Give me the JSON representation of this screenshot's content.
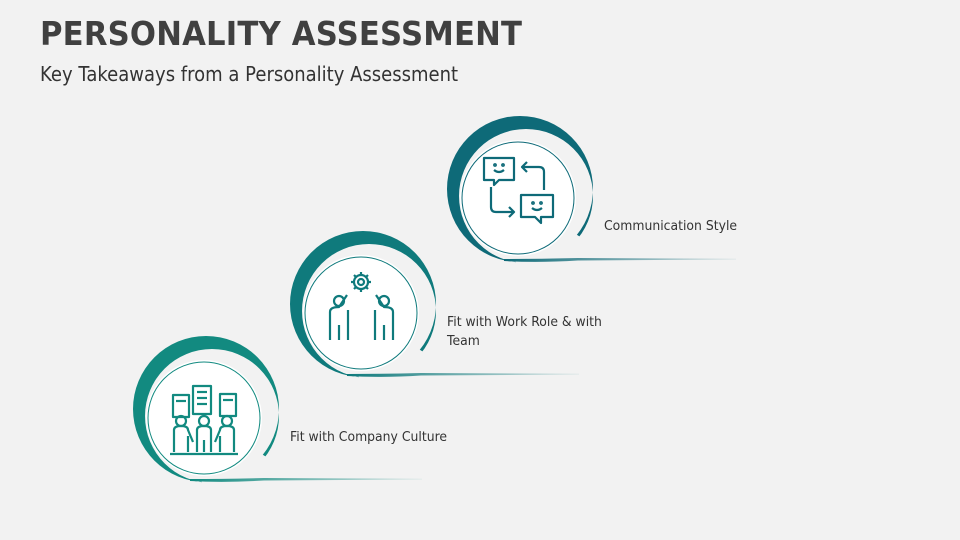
{
  "header": {
    "title": "PERSONALITY ASSESSMENT",
    "subtitle": "Key Takeaways from a Personality Assessment"
  },
  "steps": [
    {
      "label": "Fit with Company Culture",
      "icon": "team-buildings-icon",
      "color": "#128a80"
    },
    {
      "label": "Fit with Work Role & with Team",
      "icon": "team-gear-icon",
      "color": "#0f7a7c"
    },
    {
      "label": "Communication Style",
      "icon": "chat-exchange-icon",
      "color": "#0e6a78"
    }
  ],
  "background": "#f2f2f2"
}
